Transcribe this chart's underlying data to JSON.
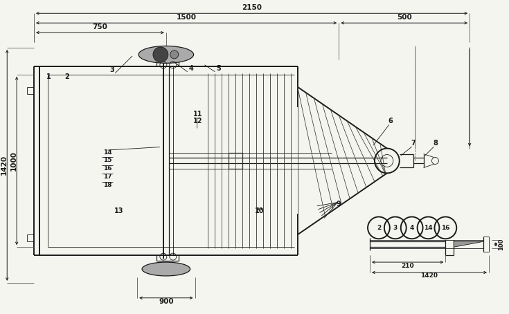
{
  "bg_color": "#f5f5f0",
  "line_color": "#1a1a1a",
  "fig_width": 7.35,
  "fig_height": 4.54,
  "dpi": 100,
  "dim_2150": "2150",
  "dim_1500": "1500",
  "dim_500": "500",
  "dim_750": "750",
  "dim_1000": "1000",
  "dim_1420_left": "1420",
  "dim_900": "900",
  "dim_210": "210",
  "dim_1420_right": "1420",
  "dim_100": "100"
}
